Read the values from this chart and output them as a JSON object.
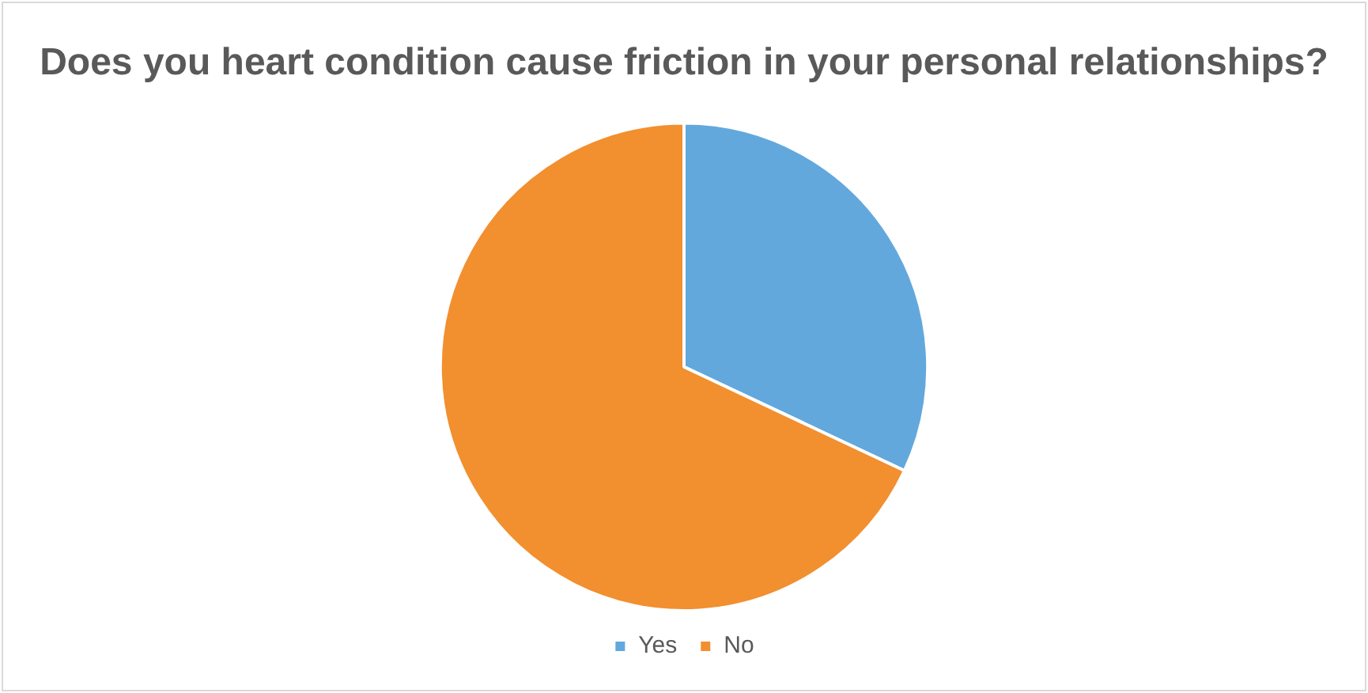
{
  "chart_data": {
    "type": "pie",
    "title": "Does you heart condition cause friction in your personal relationships?",
    "categories": [
      "Yes",
      "No"
    ],
    "values": [
      32,
      68
    ],
    "colors": [
      "#62a8dd",
      "#f28f2f"
    ],
    "legend": "bottom"
  }
}
